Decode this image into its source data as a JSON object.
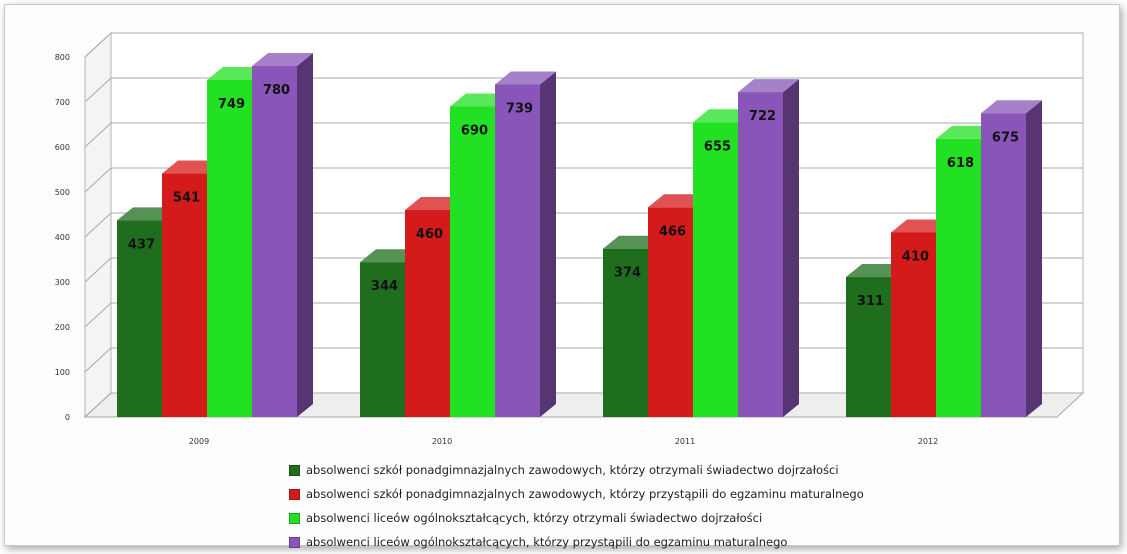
{
  "chart_data": {
    "type": "bar",
    "title": "",
    "xlabel": "",
    "ylabel": "",
    "categories": [
      "2009",
      "2010",
      "2011",
      "2012"
    ],
    "ylim": [
      0,
      800
    ],
    "yticks": [
      0,
      100,
      200,
      300,
      400,
      500,
      600,
      700,
      800
    ],
    "grid": true,
    "legend_position": "bottom",
    "series": [
      {
        "name": "absolwenci szkół ponadgimnazjalnych zawodowych, którzy otrzymali świadectwo dojrzałości",
        "values": [
          437,
          344,
          374,
          311
        ],
        "color": "#1e6e1e"
      },
      {
        "name": "absolwenci szkół ponadgimnazjalnych zawodowych, którzy przystąpili do egzaminu maturalnego",
        "values": [
          541,
          460,
          466,
          410
        ],
        "color": "#d41a1a"
      },
      {
        "name": "absolwenci liceów ogólnokształcących, którzy otrzymali świadectwo dojrzałości",
        "values": [
          749,
          690,
          655,
          618
        ],
        "color": "#22e022"
      },
      {
        "name": "absolwenci liceów ogólnokształcących, którzy przystąpili do egzaminu maturalnego",
        "values": [
          780,
          739,
          722,
          675
        ],
        "color": "#8a55b8"
      }
    ]
  }
}
